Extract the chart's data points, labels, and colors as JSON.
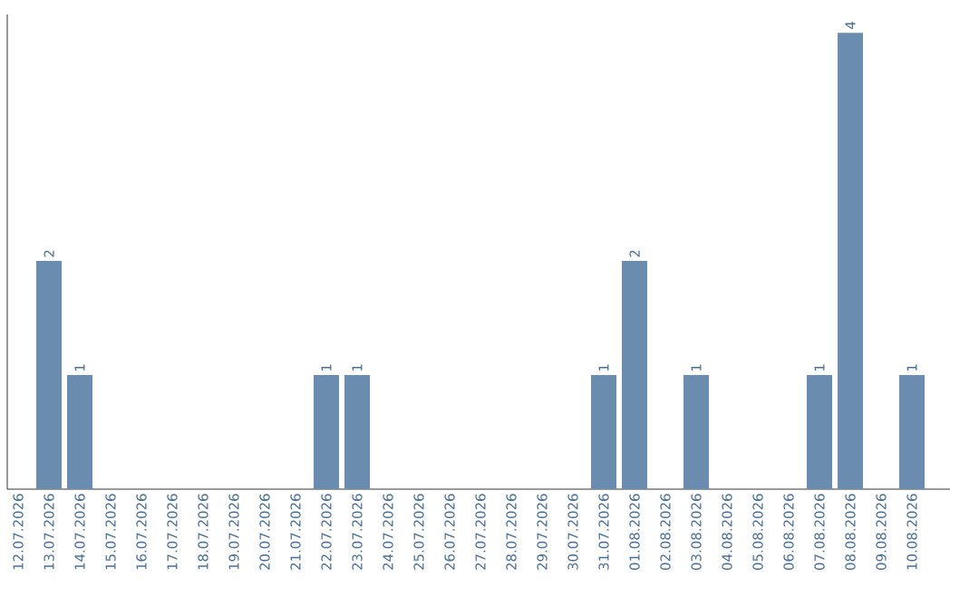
{
  "chart_data": {
    "type": "bar",
    "categories": [
      "12.07.2026",
      "13.07.2026",
      "14.07.2026",
      "15.07.2026",
      "16.07.2026",
      "17.07.2026",
      "18.07.2026",
      "19.07.2026",
      "20.07.2026",
      "21.07.2026",
      "22.07.2026",
      "23.07.2026",
      "24.07.2026",
      "25.07.2026",
      "26.07.2026",
      "27.07.2026",
      "28.07.2026",
      "29.07.2026",
      "30.07.2026",
      "31.07.2026",
      "01.08.2026",
      "02.08.2026",
      "03.08.2026",
      "04.08.2026",
      "05.08.2026",
      "06.08.2026",
      "07.08.2026",
      "08.08.2026",
      "09.08.2026",
      "10.08.2026"
    ],
    "values": [
      0,
      2,
      1,
      0,
      0,
      0,
      0,
      0,
      0,
      0,
      1,
      1,
      0,
      0,
      0,
      0,
      0,
      0,
      0,
      1,
      2,
      0,
      1,
      0,
      0,
      0,
      1,
      4,
      0,
      1
    ],
    "value_labels": [
      null,
      "2",
      "1",
      null,
      null,
      null,
      null,
      null,
      null,
      null,
      "1",
      "1",
      null,
      null,
      null,
      null,
      null,
      null,
      null,
      "1",
      "2",
      null,
      "1",
      null,
      null,
      null,
      "1",
      "4",
      null,
      "1"
    ],
    "color": "#6a8caf",
    "tick_labels": "x"
  }
}
